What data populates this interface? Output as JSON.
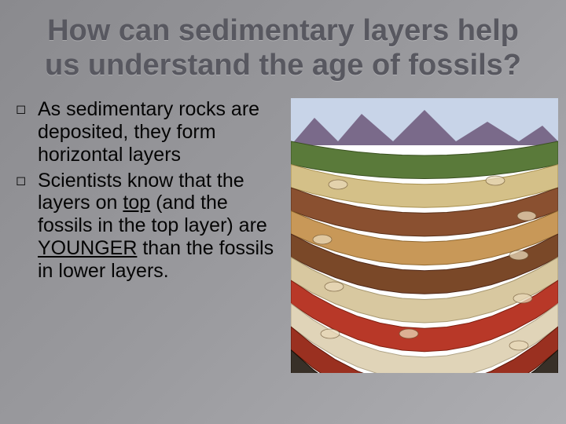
{
  "title": "How can sedimentary layers help us understand the age of fossils?",
  "bullets": [
    {
      "text": "As sedimentary rocks are deposited, they form horizontal layers"
    },
    {
      "text_pre": "Scientists know that the layers on ",
      "u1": "top",
      "mid": " (and the fossils in the top layer) are ",
      "u2": "YOUNGER",
      "post": " than the fossils in lower layers."
    }
  ],
  "illustration": {
    "type": "infographic",
    "description": "Cross-section of curved sedimentary rock layers with fossils, mountains and sky at top",
    "background_color": "#ffffff",
    "sky_color": "#c8d4e8",
    "mountain_color": "#7a6a8a",
    "layers": [
      {
        "color": "#5a7a3a",
        "stroke": "#3a5020"
      },
      {
        "color": "#d4c088",
        "stroke": "#a89050"
      },
      {
        "color": "#8a5030",
        "stroke": "#5a3018"
      },
      {
        "color": "#c89858",
        "stroke": "#906830"
      },
      {
        "color": "#7a4828",
        "stroke": "#502818"
      },
      {
        "color": "#d8c8a0",
        "stroke": "#a89870"
      },
      {
        "color": "#b83828",
        "stroke": "#802010"
      },
      {
        "color": "#e0d4b8",
        "stroke": "#b0a488"
      },
      {
        "color": "#9a3020",
        "stroke": "#601808"
      },
      {
        "color": "#383028",
        "stroke": "#181008"
      }
    ],
    "fossil_color": "#e8d8b8"
  }
}
